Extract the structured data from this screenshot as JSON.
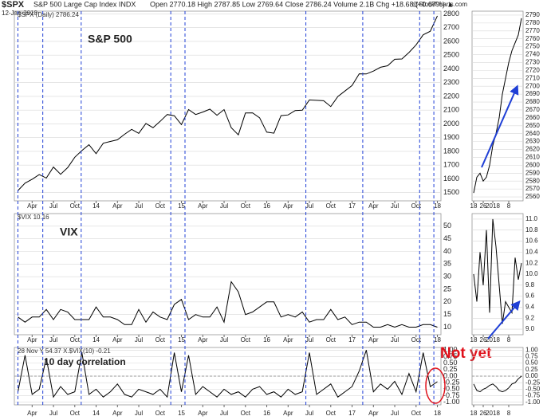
{
  "header": {
    "symbol": "$SPX",
    "name": "S&P 500 Large Cap Index INDX",
    "date": "12-Jan-2018",
    "quote": "Open 2770.18  High 2787.85  Low 2769.64  Close 2786.24  Volume 2.1B  Chg +18.68 (+0.67%) ▲",
    "source": "@StockCharts.com"
  },
  "chart_data": [
    {
      "type": "line",
      "legend": "$SPX (Daily) 2786.24",
      "title": "S&P 500",
      "color": "#000000",
      "categories": [
        null,
        null,
        "Apr",
        null,
        null,
        "Jul",
        null,
        null,
        "Oct",
        null,
        null,
        "14",
        null,
        null,
        "Apr",
        null,
        null,
        "Jul",
        null,
        null,
        "Oct",
        null,
        null,
        "15",
        null,
        null,
        "Apr",
        null,
        null,
        "Jul",
        null,
        null,
        "Oct",
        null,
        null,
        "16",
        null,
        null,
        "Apr",
        null,
        null,
        "Jul",
        null,
        null,
        "Oct",
        null,
        null,
        "17",
        null,
        null,
        "Apr",
        null,
        null,
        "Jul",
        null,
        null,
        "Oct",
        null,
        null,
        "18"
      ],
      "values": [
        1515,
        1569,
        1597,
        1631,
        1606,
        1686,
        1633,
        1682,
        1757,
        1806,
        1848,
        1783,
        1859,
        1872,
        1884,
        1924,
        1960,
        1931,
        2003,
        1972,
        2018,
        2068,
        2059,
        1995,
        2104,
        2068,
        2086,
        2107,
        2063,
        2104,
        1972,
        1920,
        2079,
        2080,
        2044,
        1940,
        1932,
        2060,
        2065,
        2097,
        2099,
        2174,
        2171,
        2168,
        2126,
        2199,
        2239,
        2279,
        2364,
        2363,
        2384,
        2412,
        2423,
        2470,
        2472,
        2519,
        2575,
        2648,
        2674,
        2786
      ],
      "ylim": [
        1440,
        2820
      ],
      "yticks": [
        1500,
        1600,
        1700,
        1800,
        1900,
        2000,
        2100,
        2200,
        2300,
        2400,
        2500,
        2600,
        2700,
        2800
      ],
      "grid": true
    },
    {
      "type": "line",
      "legend": "$VIX 10.16",
      "title": "VIX",
      "color": "#000000",
      "categories": [
        null,
        null,
        "Apr",
        null,
        null,
        "Jul",
        null,
        null,
        "Oct",
        null,
        null,
        "14",
        null,
        null,
        "Apr",
        null,
        null,
        "Jul",
        null,
        null,
        "Oct",
        null,
        null,
        "15",
        null,
        null,
        "Apr",
        null,
        null,
        "Jul",
        null,
        null,
        "Oct",
        null,
        null,
        "16",
        null,
        null,
        "Apr",
        null,
        null,
        "Jul",
        null,
        null,
        "Oct",
        null,
        null,
        "17",
        null,
        null,
        "Apr",
        null,
        null,
        "Jul",
        null,
        null,
        "Oct",
        null,
        null,
        "18"
      ],
      "values": [
        14,
        12,
        14,
        14,
        17,
        13,
        17,
        16,
        13,
        13,
        13,
        18,
        14,
        14,
        13,
        11,
        11,
        17,
        12,
        16,
        14,
        13,
        19,
        21,
        13,
        15,
        14,
        14,
        18,
        12,
        28,
        24,
        15,
        16,
        18,
        20,
        20,
        14,
        15,
        14,
        16,
        12,
        13,
        13,
        17,
        13,
        14,
        11,
        12,
        12,
        10,
        10,
        11,
        10,
        11,
        10,
        10,
        11,
        11,
        10
      ],
      "ylim": [
        7,
        55
      ],
      "yticks": [
        10,
        15,
        20,
        25,
        30,
        35,
        40,
        45,
        50
      ],
      "grid": true
    },
    {
      "type": "line",
      "legend": "28 Nov Y 54.37 X.$VIX(10) -0.21",
      "title": "10 day correlation",
      "note": "Not yet",
      "color": "#000000",
      "categories": [
        null,
        null,
        "Apr",
        null,
        null,
        "Jul",
        null,
        null,
        "Oct",
        null,
        null,
        "14",
        null,
        null,
        "Apr",
        null,
        null,
        "Jul",
        null,
        null,
        "Oct",
        null,
        null,
        "15",
        null,
        null,
        "Apr",
        null,
        null,
        "Jul",
        null,
        null,
        "Oct",
        null,
        null,
        "16",
        null,
        null,
        "Apr",
        null,
        null,
        "Jul",
        null,
        null,
        "Oct",
        null,
        null,
        "17",
        null,
        null,
        "Apr",
        null,
        null,
        "Jul",
        null,
        null,
        "Oct",
        null,
        null,
        "18"
      ],
      "values": [
        -0.6,
        0.8,
        -0.7,
        -0.5,
        0.7,
        -0.8,
        -0.4,
        -0.7,
        -0.6,
        0.9,
        -0.7,
        -0.5,
        -0.8,
        -0.6,
        -0.3,
        -0.7,
        -0.8,
        -0.5,
        -0.6,
        -0.7,
        -0.5,
        -0.8,
        0.9,
        -0.6,
        0.8,
        -0.7,
        -0.4,
        -0.6,
        -0.8,
        -0.5,
        -0.7,
        -0.6,
        -0.8,
        -0.5,
        -0.4,
        -0.7,
        -0.6,
        -0.8,
        -0.5,
        -0.7,
        -0.6,
        0.9,
        -0.7,
        -0.5,
        -0.3,
        -0.8,
        -0.6,
        -0.4,
        0.2,
        1.0,
        -0.6,
        -0.3,
        -0.5,
        -0.2,
        -0.7,
        0.1,
        -0.6,
        0.9,
        -0.4,
        -0.21
      ],
      "ylim": [
        -1.1,
        1.1
      ],
      "yticks": [
        {
          "value": -1,
          "label": "-1.00"
        },
        {
          "value": -0.75,
          "label": "-0.75"
        },
        {
          "value": -0.5,
          "label": "-0.50"
        },
        {
          "value": -0.25,
          "label": "-0.25"
        },
        {
          "value": 0,
          "label": "0.00"
        },
        {
          "value": 0.25,
          "label": "0.25"
        },
        {
          "value": 0.5,
          "label": "0.50"
        },
        {
          "value": 0.75,
          "label": "0.75"
        },
        {
          "value": 1,
          "label": "1.00"
        }
      ],
      "reference_line": 0,
      "grid": true
    },
    {
      "type": "line",
      "color": "#000000",
      "categories": [
        "18",
        null,
        null,
        "26",
        null,
        null,
        "2018",
        null,
        null,
        null,
        null,
        "8",
        null,
        null,
        null,
        null
      ],
      "values": [
        2565,
        2585,
        2590,
        2580,
        2585,
        2600,
        2625,
        2640,
        2660,
        2690,
        2710,
        2730,
        2745,
        2755,
        2765,
        2786
      ],
      "ylim": [
        2555,
        2795
      ],
      "yticks": [
        2560,
        2570,
        2580,
        2590,
        2600,
        2610,
        2620,
        2630,
        2640,
        2650,
        2660,
        2670,
        2680,
        2690,
        2700,
        2710,
        2720,
        2730,
        2740,
        2750,
        2760,
        2770,
        2780,
        2790
      ],
      "grid": true
    },
    {
      "type": "line",
      "color": "#000000",
      "categories": [
        "18",
        null,
        null,
        "26",
        null,
        null,
        "2018",
        null,
        null,
        null,
        null,
        "8",
        null,
        null,
        null,
        null
      ],
      "values": [
        10.0,
        9.5,
        10.4,
        9.8,
        10.8,
        9.3,
        11.0,
        10.5,
        9.8,
        9.1,
        9.5,
        9.4,
        9.3,
        10.3,
        9.9,
        10.2
      ],
      "ylim": [
        8.9,
        11.1
      ],
      "yticks": [
        {
          "value": 9,
          "label": "9.0"
        },
        9.2,
        9.4,
        9.6,
        9.8,
        {
          "value": 10,
          "label": "10.0"
        },
        10.2,
        10.4,
        10.6,
        10.8,
        {
          "value": 11,
          "label": "11.0"
        }
      ],
      "grid": true
    },
    {
      "type": "line",
      "color": "#000000",
      "categories": [
        "18",
        null,
        null,
        "26",
        null,
        null,
        "2018",
        null,
        null,
        null,
        null,
        "8",
        null,
        null,
        null,
        null
      ],
      "values": [
        -0.3,
        -0.55,
        -0.6,
        -0.5,
        -0.45,
        -0.35,
        -0.3,
        -0.4,
        -0.55,
        -0.6,
        -0.55,
        -0.45,
        -0.3,
        -0.25,
        -0.1,
        0.0
      ],
      "ylim": [
        -1.1,
        1.1
      ],
      "yticks": [
        {
          "value": -1,
          "label": "-1.00"
        },
        {
          "value": -0.75,
          "label": "-0.75"
        },
        {
          "value": -0.5,
          "label": "-0.50"
        },
        {
          "value": -0.25,
          "label": "-0.25"
        },
        {
          "value": 0,
          "label": "0.00"
        },
        {
          "value": 0.25,
          "label": "0.25"
        },
        {
          "value": 0.5,
          "label": "0.50"
        },
        {
          "value": 0.75,
          "label": "0.75"
        },
        {
          "value": 1,
          "label": "1.00"
        }
      ],
      "reference_line": 0,
      "grid": true
    }
  ]
}
